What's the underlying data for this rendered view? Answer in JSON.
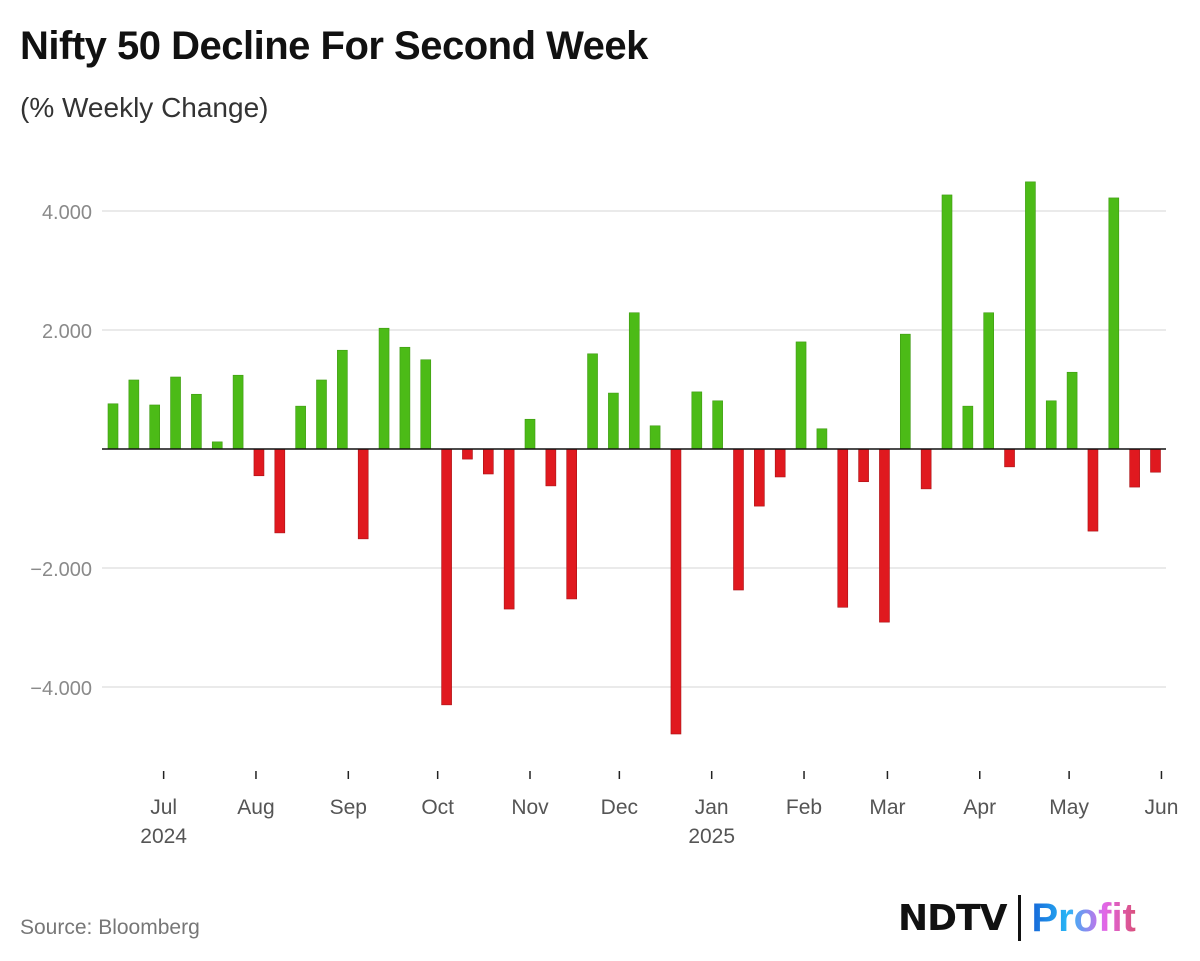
{
  "header": {
    "title": "Nifty 50 Decline For Second Week",
    "subtitle": "(% Weekly Change)"
  },
  "footer": {
    "source": "Source: Bloomberg",
    "logo_left": "NDTV",
    "logo_right": "Profit"
  },
  "colors": {
    "positive": "#4cbb17",
    "negative": "#e0191f",
    "grid": "#dddddd"
  },
  "chart_data": {
    "type": "bar",
    "title": "Nifty 50 Decline For Second Week",
    "subtitle": "(% Weekly Change)",
    "xlabel": "",
    "ylabel": "% Weekly Change",
    "ylim": [
      -5.2,
      4.9
    ],
    "grid": true,
    "first_week": "2024-06-14",
    "y_ticks": [
      {
        "value": 4,
        "label": "4.000"
      },
      {
        "value": 2,
        "label": "2.000"
      },
      {
        "value": -2,
        "label": "−2.000"
      },
      {
        "value": -4,
        "label": "−4.000"
      }
    ],
    "x_ticks": [
      {
        "date": "2024-07-01",
        "label": "Jul",
        "year": "2024"
      },
      {
        "date": "2024-08-01",
        "label": "Aug"
      },
      {
        "date": "2024-09-01",
        "label": "Sep"
      },
      {
        "date": "2024-10-01",
        "label": "Oct"
      },
      {
        "date": "2024-11-01",
        "label": "Nov"
      },
      {
        "date": "2024-12-01",
        "label": "Dec"
      },
      {
        "date": "2025-01-01",
        "label": "Jan",
        "year": "2025"
      },
      {
        "date": "2025-02-01",
        "label": "Feb"
      },
      {
        "date": "2025-03-01",
        "label": "Mar"
      },
      {
        "date": "2025-04-01",
        "label": "Apr"
      },
      {
        "date": "2025-05-01",
        "label": "May"
      },
      {
        "date": "2025-06-01",
        "label": "Jun"
      }
    ],
    "values": [
      0.76,
      1.16,
      0.74,
      1.21,
      0.92,
      0.12,
      1.24,
      -0.45,
      -1.41,
      0.72,
      1.16,
      1.66,
      -1.51,
      2.03,
      1.71,
      1.5,
      -4.3,
      -0.17,
      -0.42,
      -2.69,
      0.5,
      -0.62,
      -2.52,
      1.6,
      0.94,
      2.29,
      0.39,
      -4.79,
      0.96,
      0.81,
      -2.37,
      -0.96,
      -0.47,
      1.8,
      0.34,
      -2.66,
      -0.55,
      -2.91,
      1.93,
      -0.67,
      4.27,
      0.72,
      2.29,
      -0.3,
      4.49,
      0.81,
      1.29,
      -1.38,
      4.22,
      -0.64,
      -0.39
    ]
  }
}
